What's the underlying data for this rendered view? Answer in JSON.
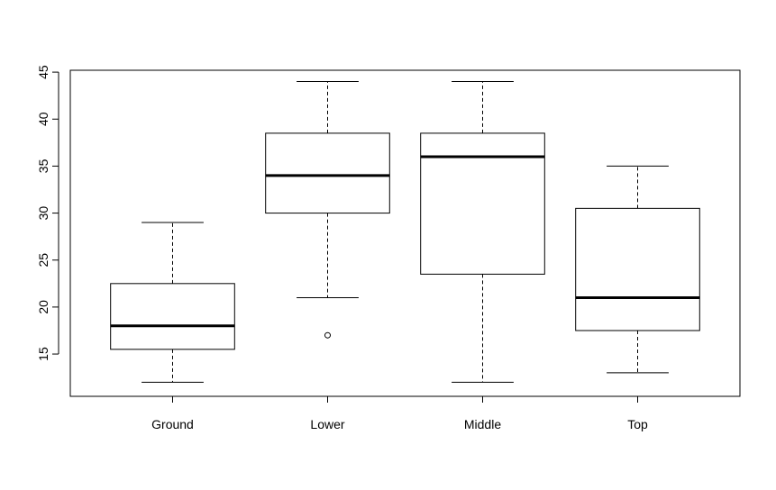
{
  "chart_data": {
    "type": "boxplot",
    "title": "",
    "xlabel": "",
    "ylabel": "",
    "categories": [
      "Ground",
      "Lower",
      "Middle",
      "Top"
    ],
    "y_ticks": [
      "15",
      "20",
      "25",
      "30",
      "35",
      "40",
      "45"
    ],
    "ylim": [
      10.5,
      45.2
    ],
    "boxes": [
      {
        "name": "Ground",
        "whisker_low": 12,
        "q1": 15.5,
        "median": 18,
        "q3": 22.5,
        "whisker_high": 29,
        "outliers": []
      },
      {
        "name": "Lower",
        "whisker_low": 21,
        "q1": 30,
        "median": 34,
        "q3": 38.5,
        "whisker_high": 44,
        "outliers": [
          17
        ]
      },
      {
        "name": "Middle",
        "whisker_low": 12,
        "q1": 23.5,
        "median": 36,
        "q3": 38.5,
        "whisker_high": 44,
        "outliers": []
      },
      {
        "name": "Top",
        "whisker_low": 13,
        "q1": 17.5,
        "median": 21,
        "q3": 30.5,
        "whisker_high": 35,
        "outliers": []
      }
    ],
    "grid": false,
    "legend": "none",
    "colors": {
      "stroke": "#000000",
      "fill": "#ffffff"
    }
  }
}
